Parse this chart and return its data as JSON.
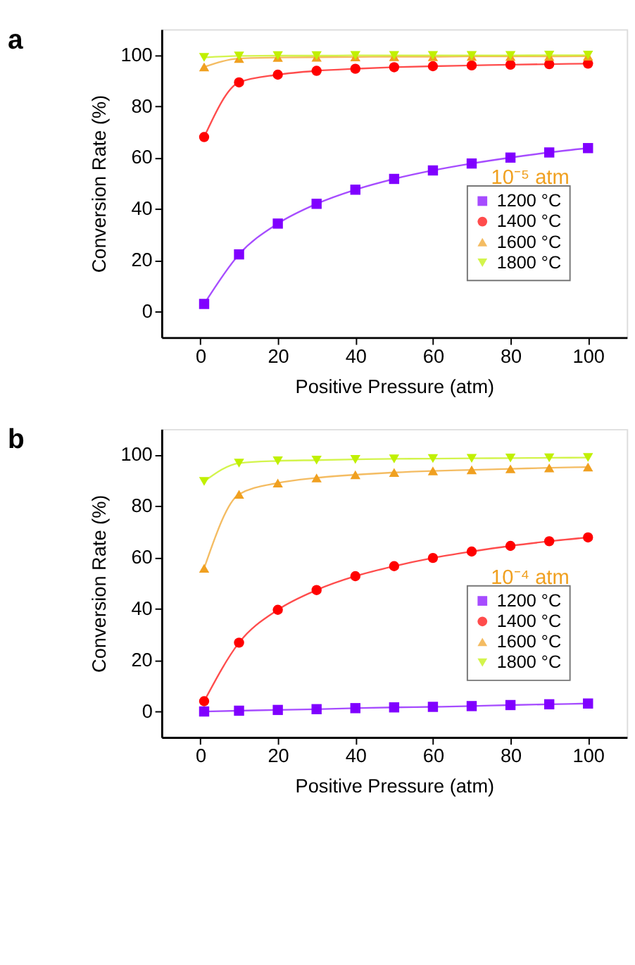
{
  "chart_data": [
    {
      "type": "line",
      "title": "a",
      "xlabel": "Positive Pressure (atm)",
      "ylabel": "Conversion Rate (%)",
      "x": [
        1,
        10,
        20,
        30,
        40,
        50,
        60,
        70,
        80,
        90,
        100
      ],
      "series": [
        {
          "name": "1200 °C",
          "color": "#8000ff",
          "marker": "square",
          "values": [
            3,
            22.3,
            34.3,
            42,
            47.5,
            51.7,
            55,
            57.7,
            60,
            62,
            63.7
          ]
        },
        {
          "name": "1400 °C",
          "color": "#ff0000",
          "marker": "circle",
          "values": [
            68,
            89.3,
            92.3,
            93.8,
            94.6,
            95.2,
            95.6,
            95.9,
            96.2,
            96.4,
            96.6
          ]
        },
        {
          "name": "1600 °C",
          "color": "#f0a020",
          "marker": "triangle",
          "values": [
            95.3,
            98.6,
            99,
            99.1,
            99.2,
            99.3,
            99.3,
            99.4,
            99.4,
            99.4,
            99.5
          ]
        },
        {
          "name": "1800 °C",
          "color": "#c0f000",
          "marker": "triangle-down",
          "values": [
            99,
            99.6,
            99.7,
            99.7,
            99.8,
            99.8,
            99.8,
            99.8,
            99.8,
            99.9,
            99.9
          ]
        }
      ],
      "annotations": [
        "10⁻⁵ atm"
      ],
      "xlim": [
        -10,
        110
      ],
      "xticks": [
        0,
        20,
        40,
        60,
        80,
        100
      ],
      "ylim": [
        -10,
        110
      ],
      "yticks": [
        0,
        20,
        40,
        60,
        80,
        100
      ],
      "grid": false,
      "legend": "bottom right"
    },
    {
      "type": "line",
      "title": "b",
      "xlabel": "Positive Pressure (atm)",
      "ylabel": "Conversion Rate (%)",
      "x": [
        1,
        10,
        20,
        30,
        40,
        50,
        60,
        70,
        80,
        90,
        100
      ],
      "series": [
        {
          "name": "1200 °C",
          "color": "#8000ff",
          "marker": "square",
          "values": [
            0,
            0.3,
            0.6,
            0.9,
            1.3,
            1.6,
            1.8,
            2.1,
            2.5,
            2.8,
            3.1
          ]
        },
        {
          "name": "1400 °C",
          "color": "#ff0000",
          "marker": "circle",
          "values": [
            4,
            26.8,
            39.6,
            47.3,
            52.7,
            56.6,
            59.8,
            62.3,
            64.5,
            66.3,
            67.8
          ]
        },
        {
          "name": "1600 °C",
          "color": "#f0a020",
          "marker": "triangle",
          "values": [
            55.8,
            84.6,
            89,
            91,
            92.2,
            93.1,
            93.7,
            94.1,
            94.5,
            94.9,
            95.2
          ]
        },
        {
          "name": "1800 °C",
          "color": "#c0f000",
          "marker": "triangle-down",
          "values": [
            89.6,
            96.7,
            97.6,
            97.9,
            98.2,
            98.4,
            98.5,
            98.6,
            98.7,
            98.8,
            98.9
          ]
        }
      ],
      "annotations": [
        "10⁻⁴ atm"
      ],
      "xlim": [
        -10,
        110
      ],
      "xticks": [
        0,
        20,
        40,
        60,
        80,
        100
      ],
      "ylim": [
        -10,
        110
      ],
      "yticks": [
        0,
        20,
        40,
        60,
        80,
        100
      ],
      "grid": false,
      "legend": "bottom right"
    }
  ]
}
